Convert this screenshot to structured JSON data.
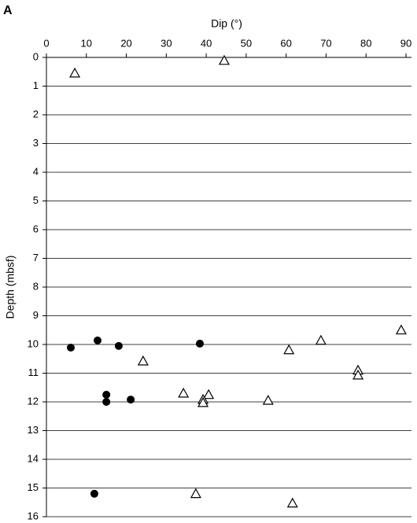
{
  "chart_data": {
    "type": "scatter",
    "panel_label": "A",
    "x_label": "Dip (°)",
    "y_label": "Depth (mbsf)",
    "xlim": [
      0,
      90
    ],
    "xticks": [
      0,
      10,
      20,
      30,
      40,
      50,
      60,
      70,
      80,
      90
    ],
    "ylim": [
      0,
      16
    ],
    "yticks": [
      0,
      1,
      2,
      3,
      4,
      5,
      6,
      7,
      8,
      9,
      10,
      11,
      12,
      13,
      14,
      15,
      16
    ],
    "y_inverted": true,
    "x_axis_position": "top",
    "grid": true,
    "series": [
      {
        "color": "#000000",
        "marker": "circle",
        "x": [
          6.1,
          12.8,
          18.1,
          38.4,
          15.0,
          15.0,
          21.1,
          12.0
        ],
        "values": [
          10.11,
          9.86,
          10.05,
          9.97,
          11.75,
          12.0,
          11.92,
          15.2
        ]
      },
      {
        "color": "#000000",
        "marker": "triangle-open",
        "x": [
          44.5,
          7.1,
          88.8,
          68.7,
          60.7,
          24.2,
          78.0,
          78.0,
          34.3,
          40.6,
          39.2,
          39.2,
          55.5,
          37.4,
          61.6
        ],
        "values": [
          0.11,
          0.55,
          9.5,
          9.86,
          10.19,
          10.58,
          10.9,
          11.07,
          11.7,
          11.75,
          11.92,
          12.03,
          11.95,
          15.2,
          15.53
        ]
      }
    ]
  }
}
